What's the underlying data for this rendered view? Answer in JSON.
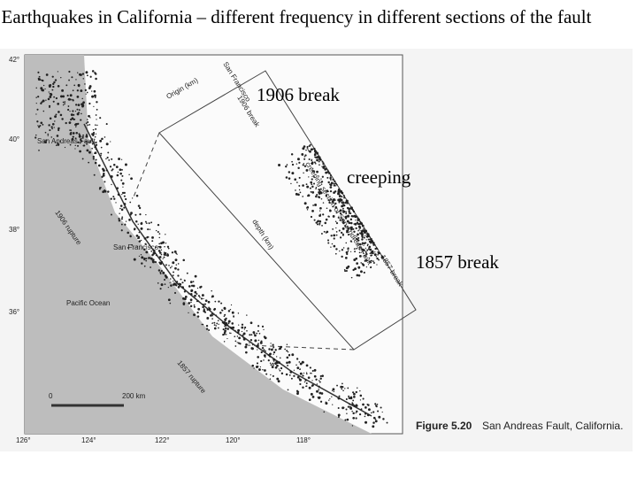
{
  "title": "Earthquakes in California – different frequency in different sections of the fault",
  "annotations": [
    "1906 break",
    "creeping",
    "1857 break"
  ],
  "figure": {
    "caption_label": "Figure 5.20",
    "caption_text": "San Andreas Fault, California.",
    "map_labels": [
      "San Andreas Fault",
      "San Francisco",
      "Pacific Ocean",
      "1906 rupture",
      "1857 rupture"
    ],
    "section_labels": [
      "Origin (km)",
      "San Francisco",
      "1906 break",
      "creeping section of San Andreas Fault",
      "1857 break",
      "depth (km)"
    ],
    "scale": [
      "0",
      "200 km"
    ],
    "latitudes": [
      "42°",
      "40°",
      "38°",
      "36°"
    ],
    "longitudes": [
      "126°",
      "124°",
      "122°",
      "120°",
      "118°"
    ]
  }
}
